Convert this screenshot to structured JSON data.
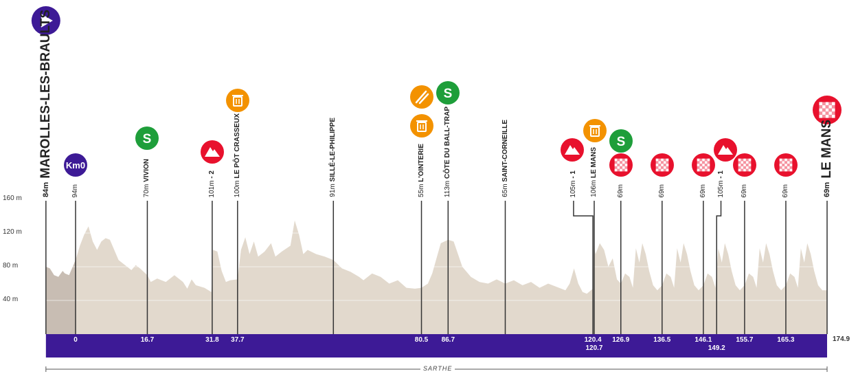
{
  "chart_data": {
    "type": "area",
    "ylim": [
      0,
      160
    ],
    "y_ticks": [
      "40 m",
      "80 m",
      "120 m",
      "160 m"
    ],
    "y_tick_values": [
      40,
      80,
      120,
      160
    ],
    "xlim": [
      -6.9,
      174.9
    ],
    "grid": true,
    "colors": {
      "profile": "#e2d9cd",
      "neutral": "#c8bdb3",
      "bar": "#3d1a96",
      "kom": "#e8112d",
      "sprint": "#1e9e3a",
      "feed": "#f39200",
      "start": "#3d1a96",
      "finish": "#e8112d"
    },
    "start": {
      "elev": "84m",
      "name": "MAROLLES-LES-BRAULTS",
      "km": -6.9,
      "icon": "play-icon"
    },
    "finish": {
      "elev": "69m",
      "name": "LE MANS",
      "km": 174.9,
      "icon": "checkered-flag-icon",
      "km_label": "174.9"
    },
    "region": "SARTHE",
    "checkpoints": [
      {
        "km": 0,
        "km_label": "0",
        "elev": "94m",
        "name": "",
        "icons": [
          "km0-icon"
        ],
        "icon_text": "Km0"
      },
      {
        "km": 16.7,
        "km_label": "16.7",
        "elev": "70m",
        "name": "VIVION",
        "icons": [
          "sprint-icon"
        ],
        "icon_text": "S"
      },
      {
        "km": 31.8,
        "km_label": "31.8",
        "elev": "101m",
        "name": "- 2",
        "icons": [
          "kom-mountain-icon"
        ]
      },
      {
        "km": 37.7,
        "km_label": "37.7",
        "elev": "100m",
        "name": "LE PÔT CRASSEUX",
        "icons": [
          "waste-zone-icon"
        ]
      },
      {
        "km": 60,
        "km_label": "",
        "elev": "91m",
        "name": "SILLÉ-LE-PHILIPPE",
        "icons": []
      },
      {
        "km": 80.5,
        "km_label": "80.5",
        "elev": "55m",
        "name": "L'OINTERIE",
        "icons": [
          "feed-zone-icon",
          "waste-zone-icon"
        ]
      },
      {
        "km": 86.7,
        "km_label": "86.7",
        "elev": "113m",
        "name": "CÔTE DU BALL-TRAP",
        "icons": [
          "sprint-icon"
        ],
        "icon_text": "S"
      },
      {
        "km": 100,
        "km_label": "",
        "elev": "65m",
        "name": "SAINT-CORNEILLE",
        "icons": []
      },
      {
        "km": 120.4,
        "km_label": "120.4",
        "elev": "105m",
        "name": "- 1",
        "icons": [
          "kom-mountain-icon"
        ],
        "jog": -4.5
      },
      {
        "km": 120.7,
        "km_label": "120.7",
        "elev": "106m",
        "name": "LE MANS",
        "icons": [
          "waste-zone-icon"
        ],
        "second_row": true
      },
      {
        "km": 126.9,
        "km_label": "126.9",
        "elev": "69m",
        "name": "",
        "icons": [
          "sprint-icon",
          "checkered-flag-icon"
        ],
        "icon_text": "S"
      },
      {
        "km": 136.5,
        "km_label": "136.5",
        "elev": "69m",
        "name": "",
        "icons": [
          "checkered-flag-icon"
        ]
      },
      {
        "km": 146.1,
        "km_label": "146.1",
        "elev": "69m",
        "name": "",
        "icons": [
          "checkered-flag-icon"
        ]
      },
      {
        "km": 149.2,
        "km_label": "149.2",
        "elev": "105m",
        "name": "- 1",
        "icons": [
          "kom-mountain-icon"
        ],
        "jog": 1.0,
        "second_row": true
      },
      {
        "km": 155.7,
        "km_label": "155.7",
        "elev": "69m",
        "name": "",
        "icons": [
          "checkered-flag-icon"
        ]
      },
      {
        "km": 165.3,
        "km_label": "165.3",
        "elev": "69m",
        "name": "",
        "icons": [
          "checkered-flag-icon"
        ]
      }
    ],
    "profile": [
      [
        -6.9,
        80
      ],
      [
        -6,
        78
      ],
      [
        -5,
        70
      ],
      [
        -4,
        68
      ],
      [
        -3,
        75
      ],
      [
        -2.5,
        72
      ],
      [
        -1.5,
        70
      ],
      [
        -0.5,
        82
      ],
      [
        0,
        88
      ],
      [
        1,
        105
      ],
      [
        2,
        118
      ],
      [
        3,
        128
      ],
      [
        4,
        110
      ],
      [
        5,
        100
      ],
      [
        6,
        110
      ],
      [
        7,
        114
      ],
      [
        8,
        112
      ],
      [
        9,
        100
      ],
      [
        10,
        88
      ],
      [
        11,
        84
      ],
      [
        12,
        80
      ],
      [
        13,
        76
      ],
      [
        14,
        82
      ],
      [
        15,
        78
      ],
      [
        16.7,
        70
      ],
      [
        17.5,
        62
      ],
      [
        19,
        66
      ],
      [
        21,
        62
      ],
      [
        23,
        70
      ],
      [
        25,
        62
      ],
      [
        26,
        54
      ],
      [
        27,
        65
      ],
      [
        28,
        58
      ],
      [
        30,
        55
      ],
      [
        31.6,
        50
      ],
      [
        32,
        100
      ],
      [
        33,
        98
      ],
      [
        34,
        75
      ],
      [
        35,
        62
      ],
      [
        36,
        64
      ],
      [
        37.7,
        65
      ],
      [
        38.5,
        100
      ],
      [
        39.5,
        115
      ],
      [
        40.5,
        95
      ],
      [
        41.5,
        110
      ],
      [
        42.5,
        92
      ],
      [
        44,
        98
      ],
      [
        45.5,
        108
      ],
      [
        46.5,
        92
      ],
      [
        48,
        98
      ],
      [
        50,
        105
      ],
      [
        51,
        135
      ],
      [
        52,
        118
      ],
      [
        53,
        95
      ],
      [
        54,
        100
      ],
      [
        56,
        95
      ],
      [
        58,
        92
      ],
      [
        60,
        88
      ],
      [
        62,
        78
      ],
      [
        64,
        74
      ],
      [
        66,
        68
      ],
      [
        67,
        64
      ],
      [
        69,
        72
      ],
      [
        71,
        68
      ],
      [
        73,
        60
      ],
      [
        75,
        64
      ],
      [
        77,
        55
      ],
      [
        79,
        54
      ],
      [
        80.5,
        55
      ],
      [
        82,
        60
      ],
      [
        83,
        72
      ],
      [
        84,
        90
      ],
      [
        85,
        108
      ],
      [
        86.7,
        112
      ],
      [
        88,
        110
      ],
      [
        89,
        95
      ],
      [
        90,
        80
      ],
      [
        92,
        68
      ],
      [
        94,
        62
      ],
      [
        96,
        60
      ],
      [
        98,
        65
      ],
      [
        100,
        60
      ],
      [
        102,
        64
      ],
      [
        104,
        58
      ],
      [
        106,
        62
      ],
      [
        108,
        55
      ],
      [
        110,
        60
      ],
      [
        112,
        56
      ],
      [
        114,
        52
      ],
      [
        115,
        60
      ],
      [
        116,
        78
      ],
      [
        117,
        60
      ],
      [
        118,
        50
      ],
      [
        119,
        48
      ],
      [
        120.4,
        54
      ],
      [
        120.6,
        105
      ],
      [
        121,
        95
      ],
      [
        122,
        108
      ],
      [
        123,
        100
      ],
      [
        124,
        80
      ],
      [
        125,
        90
      ],
      [
        126,
        65
      ],
      [
        126.9,
        60
      ],
      [
        127.9,
        72
      ],
      [
        128.9,
        68
      ],
      [
        129.7,
        55
      ],
      [
        130.4,
        102
      ],
      [
        131.2,
        85
      ],
      [
        131.9,
        108
      ],
      [
        132.7,
        95
      ],
      [
        133.5,
        75
      ],
      [
        134.4,
        58
      ],
      [
        135.4,
        52
      ],
      [
        136.5,
        58
      ],
      [
        137.5,
        72
      ],
      [
        138.5,
        68
      ],
      [
        139.3,
        55
      ],
      [
        140,
        102
      ],
      [
        140.8,
        85
      ],
      [
        141.5,
        108
      ],
      [
        142.3,
        95
      ],
      [
        143.1,
        75
      ],
      [
        144,
        58
      ],
      [
        145,
        52
      ],
      [
        146.1,
        58
      ],
      [
        147.1,
        72
      ],
      [
        148.1,
        68
      ],
      [
        148.9,
        55
      ],
      [
        149.6,
        102
      ],
      [
        150.4,
        85
      ],
      [
        151.1,
        108
      ],
      [
        151.9,
        95
      ],
      [
        152.7,
        75
      ],
      [
        153.6,
        58
      ],
      [
        154.6,
        52
      ],
      [
        155.7,
        58
      ],
      [
        156.7,
        72
      ],
      [
        157.7,
        68
      ],
      [
        158.5,
        55
      ],
      [
        159.2,
        102
      ],
      [
        160,
        85
      ],
      [
        160.7,
        108
      ],
      [
        161.5,
        95
      ],
      [
        162.3,
        75
      ],
      [
        163.2,
        58
      ],
      [
        164.2,
        52
      ],
      [
        165.3,
        58
      ],
      [
        166.3,
        72
      ],
      [
        167.3,
        68
      ],
      [
        168.1,
        55
      ],
      [
        168.8,
        102
      ],
      [
        169.6,
        85
      ],
      [
        170.3,
        108
      ],
      [
        171.1,
        95
      ],
      [
        171.9,
        75
      ],
      [
        172.8,
        58
      ],
      [
        173.8,
        52
      ],
      [
        174.9,
        52
      ]
    ]
  }
}
